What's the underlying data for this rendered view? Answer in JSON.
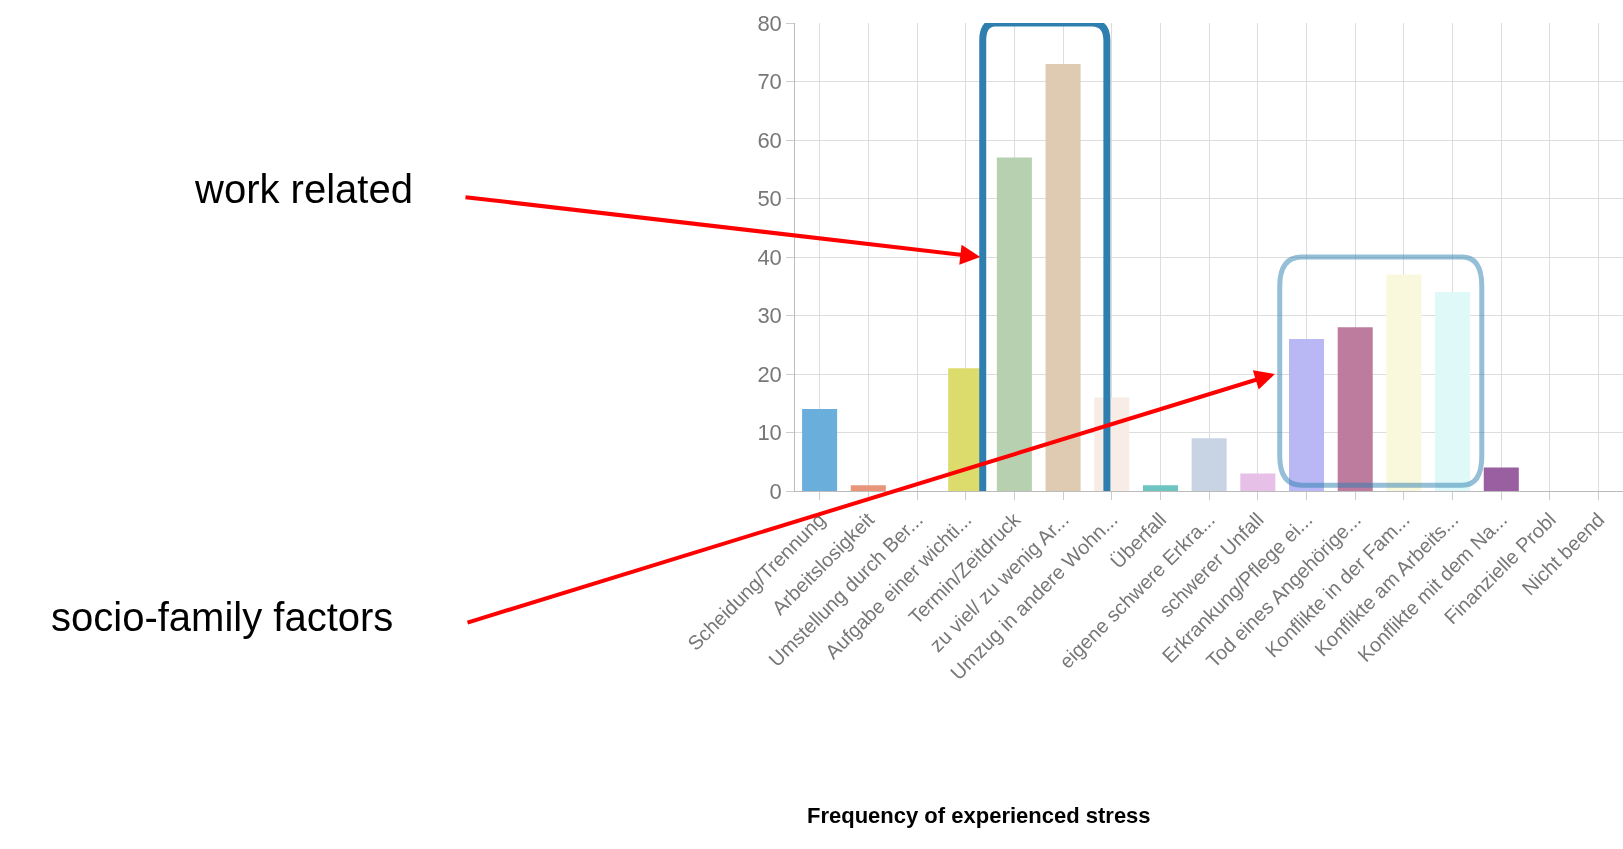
{
  "chart_data": {
    "type": "bar",
    "categories": [
      "Scheidung/Trennung",
      "Arbeitslosigkeit",
      "Umstellung durch Ber...",
      "Aufgabe einer wichti...",
      "Termin/Zeitdruck",
      "zu viel/ zu wenig Ar...",
      "Umzug in andere Wohn...",
      "Überfall",
      "eigene schwere Erkra...",
      "schwerer Unfall",
      "Erkrankung/Pflege ei...",
      "Tod eines Angehörige...",
      "Konflikte in der Fam...",
      "Konflikte am Arbeits...",
      "Konflikte mit dem Na...",
      "Finanzielle Probl",
      "Nicht beend"
    ],
    "values": [
      14,
      1,
      0,
      21,
      57,
      73,
      16,
      1,
      9,
      3,
      26,
      28,
      37,
      34,
      4,
      null,
      null
    ],
    "colors": [
      "#6aaedb",
      "#e8957a",
      "#cccccc",
      "#dcdc6c",
      "#b7d1b0",
      "#dfcbb1",
      "#f8ece6",
      "#6dc4c0",
      "#c8d4e4",
      "#e6c0e6",
      "#b9b8f4",
      "#bd7c9e",
      "#f9f8dc",
      "#dff8f8",
      "#9a5fa0",
      "#cccccc",
      "#cccccc"
    ],
    "ylim": [
      0,
      80
    ],
    "yticks": [
      0,
      10,
      20,
      30,
      40,
      50,
      60,
      70,
      80
    ],
    "grid": true,
    "annotations": [
      "work related",
      "socio-family factors",
      "Frequency of experienced stress"
    ]
  }
}
